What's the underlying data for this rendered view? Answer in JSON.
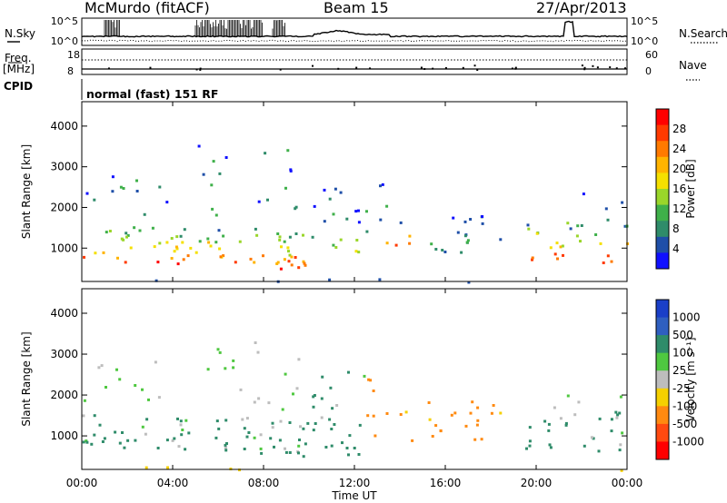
{
  "header": {
    "station": "McMurdo (fitACF)",
    "beam": "Beam 15",
    "date": "27/Apr/2013"
  },
  "top_panels": {
    "nsky_label": "N.Sky",
    "nsky_ticks": [
      "10^5",
      "10^0"
    ],
    "nsearch_label": "N.Search",
    "nsearch_ticks": [
      "10^5",
      "10^0"
    ],
    "freq_label": "Freq.",
    "freq_unit": "[MHz]",
    "freq_ticks": [
      "18",
      "8"
    ],
    "nave_label": "Nave",
    "nave_ticks": [
      "60",
      "0"
    ],
    "cpid_label": "CPID",
    "cpid_value": "normal (fast) 151 RF"
  },
  "chart_data": [
    {
      "type": "heatmap",
      "name": "power",
      "ylabel": "Slant Range [km]",
      "y_ticks": [
        1000,
        2000,
        3000,
        4000
      ],
      "ylim": [
        180,
        4600
      ],
      "xlim": [
        0,
        24
      ],
      "colorbar_label": "Power [dB]",
      "colorbar_ticks": [
        "28",
        "24",
        "20",
        "16",
        "12",
        "8",
        "4"
      ],
      "colors": [
        "#ff0000",
        "#ff3a00",
        "#ff7a00",
        "#ffb400",
        "#f5e000",
        "#9ad62a",
        "#3fb04a",
        "#2f8c6a",
        "#1f4fa8",
        "#1010ff"
      ]
    },
    {
      "type": "heatmap",
      "name": "velocity",
      "ylabel": "Slant Range [km]",
      "y_ticks": [
        1000,
        2000,
        3000,
        4000
      ],
      "ylim": [
        180,
        4600
      ],
      "xlim": [
        0,
        24
      ],
      "xlabel": "Time UT",
      "x_tick_labels": [
        "00:00",
        "04:00",
        "08:00",
        "12:00",
        "16:00",
        "20:00",
        "00:00"
      ],
      "x_ticks": [
        0,
        4,
        8,
        12,
        16,
        20,
        24
      ],
      "colorbar_label": "Velocity [m s⁻¹]",
      "colorbar_ticks": [
        "1000",
        "500",
        "100",
        "25",
        "-25",
        "-100",
        "-500",
        "-1000"
      ],
      "colors": [
        "#1a3fc8",
        "#2f5fc0",
        "#2f8c6a",
        "#4fc840",
        "#bdbdbd",
        "#f5d000",
        "#ff8a10",
        "#ff4a10",
        "#ff0000"
      ]
    }
  ]
}
